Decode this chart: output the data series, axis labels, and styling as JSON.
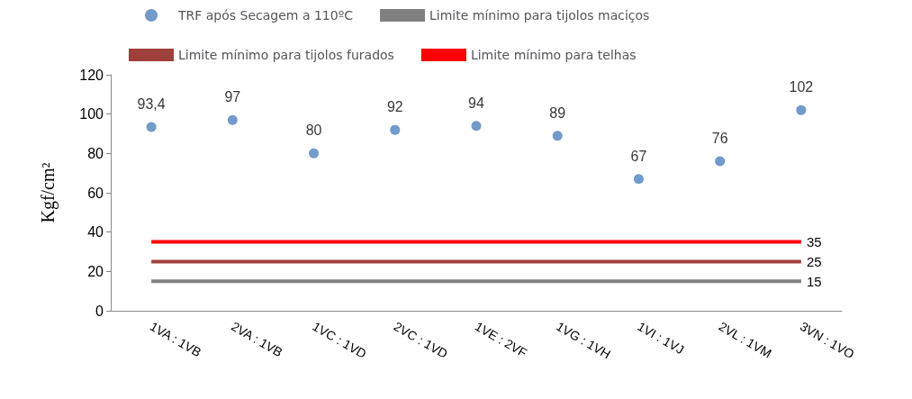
{
  "chart_data": {
    "type": "scatter",
    "ylabel": "Kgf/cm²",
    "categories": [
      "1VA : 1VB",
      "2VA : 1VB",
      "1VC : 1VD",
      "2VC : 1VD",
      "1VE : 2VF",
      "1VG : 1VH",
      "1VI : 1VJ",
      "2VL : 1VM",
      "3VN : 1VO"
    ],
    "series": [
      {
        "name": "TRF após Secagem a 110ºC",
        "marker": "circle",
        "color": "#4f81bd",
        "values": [
          93.4,
          97,
          80,
          92,
          94,
          89,
          67,
          76,
          102
        ],
        "value_labels": [
          "93,4",
          "97",
          "80",
          "92",
          "94",
          "89",
          "67",
          "76",
          "102"
        ]
      },
      {
        "name": "Limite mínimo para tijolos maciços",
        "type": "line",
        "color": "#808080",
        "values": [
          15,
          15,
          15,
          15,
          15,
          15,
          15,
          15,
          15
        ],
        "value_labels": [
          null,
          null,
          null,
          null,
          null,
          null,
          null,
          null,
          "15"
        ]
      },
      {
        "name": "Limite mínimo para tijolos furados",
        "type": "line",
        "color": "#a0403c",
        "values": [
          25,
          25,
          25,
          25,
          25,
          25,
          25,
          25,
          25
        ],
        "value_labels": [
          null,
          null,
          null,
          null,
          null,
          null,
          null,
          null,
          "25"
        ]
      },
      {
        "name": "Limite mínimo para telhas",
        "type": "line",
        "color": "#ff0000",
        "values": [
          35,
          35,
          35,
          35,
          35,
          35,
          35,
          35,
          35
        ],
        "value_labels": [
          null,
          null,
          null,
          null,
          null,
          null,
          null,
          null,
          "35"
        ]
      }
    ],
    "ylim": [
      0,
      120
    ],
    "yticks": [
      0,
      20,
      40,
      60,
      80,
      100,
      120
    ],
    "grid": false,
    "legend": "top",
    "line_style": "solid"
  }
}
